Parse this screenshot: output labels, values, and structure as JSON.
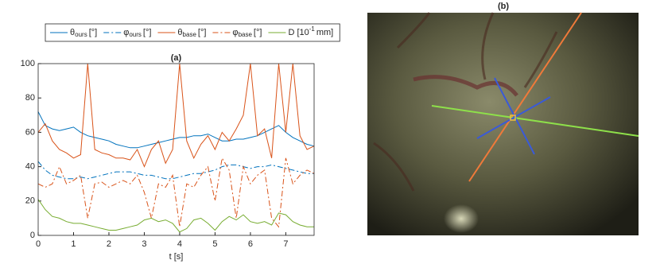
{
  "chart_data": [
    {
      "type": "line",
      "title": "(a)",
      "x_label": "t [s]",
      "x": [
        0,
        0.2,
        0.4,
        0.6,
        0.8,
        1,
        1.2,
        1.4,
        1.6,
        1.8,
        2,
        2.2,
        2.4,
        2.6,
        2.8,
        3,
        3.2,
        3.4,
        3.6,
        3.8,
        4,
        4.2,
        4.4,
        4.6,
        4.8,
        5,
        5.2,
        5.4,
        5.6,
        5.8,
        6,
        6.2,
        6.4,
        6.6,
        6.8,
        7,
        7.2,
        7.4,
        7.6,
        7.8
      ],
      "series": [
        {
          "name": "θ",
          "subscript": "ours",
          "unit": "[°]",
          "color": "#0072bd",
          "dash": "solid",
          "values": [
            72,
            64,
            62,
            61,
            62,
            63,
            60,
            58,
            57,
            56,
            55,
            53,
            52,
            51,
            51,
            52,
            53,
            54,
            55,
            56,
            57,
            57,
            58,
            58,
            59,
            57,
            55,
            55,
            56,
            56,
            57,
            58,
            60,
            62,
            64,
            60,
            57,
            55,
            53,
            52
          ]
        },
        {
          "name": "φ",
          "subscript": "ours",
          "unit": "[°]",
          "color": "#0072bd",
          "dash": "dashdot",
          "values": [
            43,
            38,
            35,
            34,
            33,
            33,
            34,
            33,
            34,
            35,
            36,
            37,
            37,
            37,
            36,
            35,
            35,
            34,
            33,
            33,
            34,
            35,
            36,
            36,
            37,
            38,
            40,
            41,
            41,
            40,
            39,
            40,
            40,
            41,
            40,
            39,
            38,
            37,
            36,
            36
          ]
        },
        {
          "name": "θ",
          "subscript": "base",
          "unit": "[°]",
          "color": "#d95319",
          "dash": "solid",
          "values": [
            60,
            65,
            55,
            50,
            48,
            45,
            47,
            100,
            50,
            48,
            47,
            45,
            45,
            44,
            50,
            40,
            50,
            55,
            42,
            50,
            100,
            55,
            45,
            53,
            58,
            50,
            60,
            55,
            62,
            70,
            100,
            58,
            62,
            45,
            100,
            60,
            100,
            58,
            50,
            52
          ]
        },
        {
          "name": "φ",
          "subscript": "base",
          "unit": "[°]",
          "color": "#d95319",
          "dash": "dashdot",
          "values": [
            30,
            28,
            30,
            40,
            30,
            32,
            35,
            10,
            30,
            31,
            28,
            30,
            32,
            30,
            35,
            25,
            10,
            30,
            28,
            35,
            5,
            30,
            28,
            35,
            40,
            20,
            45,
            38,
            10,
            40,
            30,
            35,
            38,
            10,
            5,
            45,
            30,
            35,
            38,
            36
          ]
        },
        {
          "name": "D [10",
          "superscript": "-1",
          "unit": "mm]",
          "color": "#77ac30",
          "dash": "solid",
          "values": [
            21,
            15,
            11,
            10,
            8,
            7,
            7,
            6,
            5,
            4,
            3,
            3,
            4,
            5,
            6,
            9,
            10,
            8,
            9,
            7,
            2,
            4,
            9,
            10,
            7,
            3,
            8,
            11,
            9,
            12,
            8,
            7,
            8,
            6,
            13,
            12,
            8,
            6,
            5,
            5
          ]
        }
      ],
      "xlim": [
        0,
        7.8
      ],
      "xticks": [
        0,
        1,
        2,
        3,
        4,
        5,
        6,
        7
      ],
      "ylim": [
        0,
        100
      ],
      "yticks": [
        0,
        20,
        40,
        60,
        80,
        100
      ]
    },
    {
      "type": "image",
      "title": "(b)"
    }
  ]
}
